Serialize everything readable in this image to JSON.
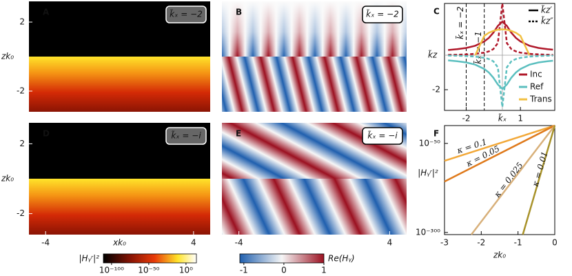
{
  "chart_data": [
    {
      "type": "intensity-map",
      "label": "A",
      "annotation": "k̃ₓ = −2",
      "xlim": [
        -4.9,
        4.9
      ],
      "ylim": [
        -3.2,
        3.2
      ],
      "yticks": [
        -2,
        2
      ],
      "ylabel": "zk₀",
      "colorbar": {
        "label": "|Hᵧʳ|²",
        "lim": [
          -111,
          14
        ],
        "ticks": [
          {
            "value": -100,
            "label": "10⁻¹⁰⁰"
          },
          {
            "value": -50,
            "label": "10⁻⁵⁰"
          },
          {
            "value": 0,
            "label": "10⁰"
          }
        ]
      }
    },
    {
      "type": "field-map",
      "label": "B",
      "annotation": "k̃ₓ = −2",
      "xlim": [
        -4.9,
        4.9
      ],
      "ylim": [
        -3.2,
        3.2
      ],
      "colorbar": {
        "label": "Re(Hᵧ)",
        "lim": [
          -1.1,
          1.0
        ],
        "ticks": [
          -1,
          0,
          1
        ]
      }
    },
    {
      "type": "line",
      "label": "C",
      "xlim": [
        -3.2,
        2.9
      ],
      "ylim": [
        -3.2,
        3
      ],
      "xticks": [
        -2,
        1
      ],
      "yticks": [
        -2
      ],
      "xlabel": "k̃ₓ",
      "ylabel": "k̃z",
      "legend": "lower right",
      "guides": [
        {
          "x": -2,
          "label": "k̃ₓ = −2"
        },
        {
          "x": -1,
          "label": "k̃ₓ = −1"
        }
      ],
      "style_legend": [
        {
          "label": "k̃z′",
          "dash": false
        },
        {
          "label": "k̃z″",
          "dash": true
        }
      ],
      "x": [
        -3,
        -2.5,
        -2,
        -1.5,
        -1,
        -0.75,
        -0.5,
        -0.25,
        0,
        0.25,
        0.5,
        0.75,
        1,
        1.5,
        2,
        2.5,
        2.8
      ],
      "series": [
        {
          "name": "Inc",
          "color": "#b0182a",
          "values": [
            0.3,
            0.35,
            0.42,
            0.55,
            0.8,
            1.0,
            1.3,
            1.7,
            1.95,
            1.7,
            1.3,
            1.0,
            0.8,
            0.55,
            0.42,
            0.35,
            0.32
          ],
          "imag": [
            0.02,
            0.03,
            0.05,
            0.08,
            0.15,
            0.22,
            0.35,
            0.7,
            3,
            0.7,
            0.35,
            0.22,
            0.15,
            0.08,
            0.05,
            0.03,
            0.02
          ]
        },
        {
          "name": "Ref",
          "color": "#5bbfbf",
          "values": [
            -0.3,
            -0.35,
            -0.42,
            -0.55,
            -0.8,
            -1.0,
            -1.3,
            -1.7,
            -1.95,
            -1.7,
            -1.3,
            -1.0,
            -0.8,
            -0.55,
            -0.42,
            -0.35,
            -0.32
          ],
          "imag": [
            -0.02,
            -0.03,
            -0.05,
            -0.08,
            -0.15,
            -0.22,
            -0.35,
            -0.7,
            -3,
            -0.7,
            -0.35,
            -0.22,
            -0.15,
            -0.08,
            -0.05,
            -0.03,
            -0.02
          ]
        },
        {
          "name": "Trans",
          "color": "#f2c042",
          "values": [
            null,
            null,
            null,
            0,
            1.12,
            1.3,
            1.41,
            1.48,
            1.5,
            1.48,
            1.41,
            1.3,
            1.12,
            0,
            null,
            null,
            null
          ]
        }
      ]
    },
    {
      "type": "intensity-map",
      "label": "D",
      "annotation": "k̃ₓ = −i",
      "xlim": [
        -4.9,
        4.9
      ],
      "ylim": [
        -3.2,
        3.2
      ],
      "yticks": [
        -2,
        2
      ],
      "ylabel": "zk₀",
      "xticks": [
        -4,
        4
      ],
      "xlabel": "xk₀"
    },
    {
      "type": "field-map",
      "label": "E",
      "annotation": "k̃ₓ = −i",
      "xlim": [
        -4.9,
        4.9
      ],
      "ylim": [
        -3.2,
        3.2
      ],
      "xticks": [
        -4,
        4
      ]
    },
    {
      "type": "line",
      "label": "F",
      "log_y": true,
      "xlim": [
        -3,
        0
      ],
      "ylim": [
        1e-306,
        1
      ],
      "xticks": [
        -3,
        -2,
        -1,
        0
      ],
      "yticks": [
        {
          "value": 1e-50,
          "label": "10⁻⁵⁰"
        },
        {
          "value": 1e-300,
          "label": "10⁻³⁰⁰"
        }
      ],
      "xlabel": "zk₀",
      "ylabel": "|Hᵧʳ|²",
      "series": [
        {
          "name": "κ = 0.1",
          "color": "#f2a838",
          "x": [
            -3,
            0
          ],
          "values": [
            1e-99,
            1
          ]
        },
        {
          "name": "κ = 0.05",
          "color": "#df7a1c",
          "x": [
            -3,
            0
          ],
          "values": [
            1e-157,
            1
          ]
        },
        {
          "name": "κ = 0.025",
          "color": "#d8b07a",
          "x": [
            -2.27,
            0
          ],
          "values": [
            1e-306,
            1
          ]
        },
        {
          "name": "κ = 0.01",
          "color": "#a8922a",
          "x": [
            -0.87,
            0
          ],
          "values": [
            1e-306,
            1
          ]
        }
      ]
    }
  ]
}
